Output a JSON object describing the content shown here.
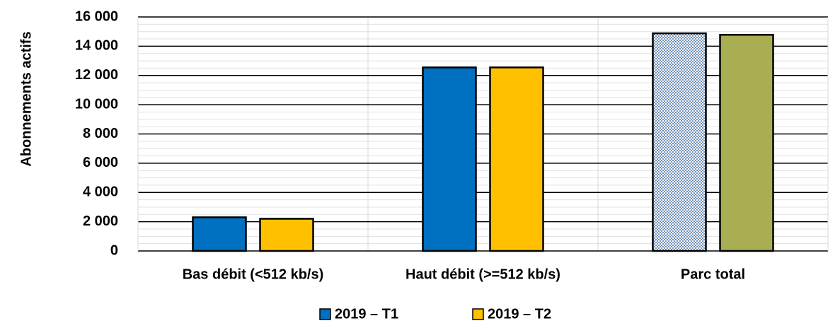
{
  "chart_data": {
    "type": "bar",
    "y_label": "Abonnements actifs",
    "categories": [
      "Bas débit (<512 kb/s)",
      "Haut débit (>=512 kb/s)",
      "Parc total"
    ],
    "series": [
      {
        "name": "2019 – T1",
        "color": "#0070c0",
        "point_colors": [
          "#0070c0",
          "#0070c0",
          "#b8c8e0"
        ],
        "values": [
          2300,
          12550,
          14880
        ]
      },
      {
        "name": "2019 – T2",
        "color": "#ffc000",
        "point_colors": [
          "#ffc000",
          "#ffc000",
          "#aaae52"
        ],
        "values": [
          2200,
          12550,
          14780
        ]
      }
    ],
    "ylim": [
      0,
      16000
    ],
    "yticks": [
      0,
      {
        "value": 2000,
        "label": "2 000"
      },
      {
        "value": 4000,
        "label": "4 000"
      },
      {
        "value": 6000,
        "label": "6 000"
      },
      {
        "value": 8000,
        "label": "8 000"
      },
      {
        "value": 10000,
        "label": "10 000"
      },
      {
        "value": 12000,
        "label": "12 000"
      },
      {
        "value": 14000,
        "label": "14 000"
      },
      {
        "value": 16000,
        "label": "16 000"
      }
    ],
    "grid": true,
    "minor_grid": true,
    "legend": "bottom"
  }
}
